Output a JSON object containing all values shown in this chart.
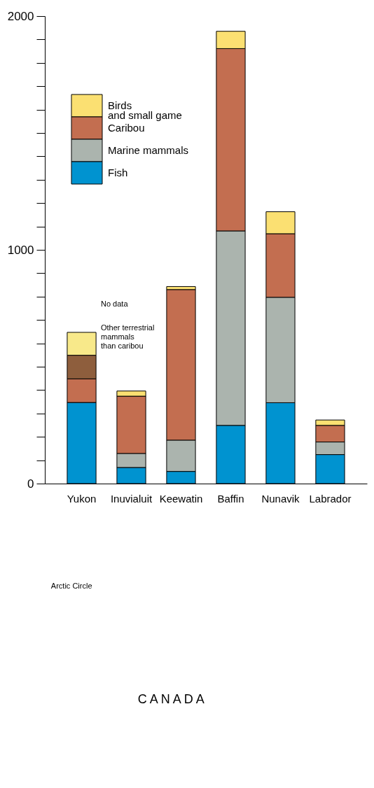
{
  "chart_data": {
    "type": "bar",
    "stacked": true,
    "categories": [
      "Yukon",
      "Inuvialuit",
      "Keewatin",
      "Baffin",
      "Nunavik",
      "Labrador"
    ],
    "series": [
      {
        "name": "Fish",
        "color": "#0093d0",
        "values": [
          347,
          69,
          52,
          249,
          346,
          124
        ]
      },
      {
        "name": "Marine mammals",
        "color": "#abb4ae",
        "values": [
          null,
          60,
          134,
          832,
          451,
          54
        ]
      },
      {
        "name": "Caribou",
        "color": "#c36e50",
        "values": [
          101,
          245,
          644,
          780,
          272,
          71
        ]
      },
      {
        "color": "#8e5e3d",
        "values": [
          101,
          null,
          null,
          null,
          null,
          null
        ]
      },
      {
        "color": "#f8e98a",
        "values": [
          98,
          null,
          null,
          null,
          null,
          null
        ]
      },
      {
        "name": "Birds\nand small game",
        "color": "#fbe072",
        "values": [
          null,
          22,
          13,
          74,
          94,
          23
        ]
      }
    ],
    "ylim": [
      0,
      2000
    ],
    "yticks": [
      0,
      {
        "value": 100,
        "label": null
      },
      {
        "value": 200,
        "label": null
      },
      {
        "value": 300,
        "label": null
      },
      {
        "value": 400,
        "label": null
      },
      {
        "value": 500,
        "label": null
      },
      {
        "value": 600,
        "label": null
      },
      {
        "value": 700,
        "label": null
      },
      {
        "value": 800,
        "label": null
      },
      {
        "value": 900,
        "label": null
      },
      1000,
      {
        "value": 1100,
        "label": null
      },
      {
        "value": 1200,
        "label": null
      },
      {
        "value": 1300,
        "label": null
      },
      {
        "value": 1400,
        "label": null
      },
      {
        "value": 1500,
        "label": null
      },
      {
        "value": 1600,
        "label": null
      },
      {
        "value": 1700,
        "label": null
      },
      {
        "value": 1800,
        "label": null
      },
      {
        "value": 1900,
        "label": null
      },
      2000
    ],
    "annotations": [
      "No data",
      "Other terrestrial\nmammals\nthan caribou",
      "Arctic Circle",
      "C A N A D A"
    ],
    "legend": "top left",
    "grid": false
  }
}
